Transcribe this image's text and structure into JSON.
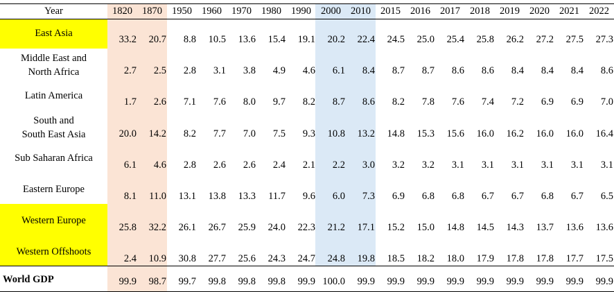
{
  "table": {
    "year_header": "Year",
    "years": [
      "1820",
      "1870",
      "1950",
      "1960",
      "1970",
      "1980",
      "1990",
      "2000",
      "2010",
      "2015",
      "2016",
      "2017",
      "2018",
      "2019",
      "2020",
      "2021",
      "2022"
    ],
    "rows": [
      {
        "region": [
          "East Asia"
        ],
        "highlight": true,
        "values": [
          "33.2",
          "20.7",
          "8.8",
          "10.5",
          "13.6",
          "15.4",
          "19.1",
          "20.2",
          "22.4",
          "24.5",
          "25.0",
          "25.4",
          "25.8",
          "26.2",
          "27.2",
          "27.5",
          "27.3"
        ]
      },
      {
        "region": [
          "Middle East and",
          "North Africa"
        ],
        "highlight": false,
        "values": [
          "2.7",
          "2.5",
          "2.8",
          "3.1",
          "3.8",
          "4.9",
          "4.6",
          "6.1",
          "8.4",
          "8.7",
          "8.7",
          "8.6",
          "8.6",
          "8.4",
          "8.4",
          "8.4",
          "8.6"
        ]
      },
      {
        "region": [
          "Latin America"
        ],
        "highlight": false,
        "values": [
          "1.7",
          "2.6",
          "7.1",
          "7.6",
          "8.0",
          "9.7",
          "8.2",
          "8.7",
          "8.6",
          "8.2",
          "7.8",
          "7.6",
          "7.4",
          "7.2",
          "6.9",
          "6.9",
          "7.0"
        ]
      },
      {
        "region": [
          "South and",
          "South East Asia"
        ],
        "highlight": false,
        "values": [
          "20.0",
          "14.2",
          "8.2",
          "7.7",
          "7.0",
          "7.5",
          "9.3",
          "10.8",
          "13.2",
          "14.8",
          "15.3",
          "15.6",
          "16.0",
          "16.2",
          "16.0",
          "16.0",
          "16.4"
        ]
      },
      {
        "region": [
          "Sub Saharan Africa"
        ],
        "highlight": false,
        "values": [
          "6.1",
          "4.6",
          "2.8",
          "2.6",
          "2.6",
          "2.4",
          "2.1",
          "2.2",
          "3.0",
          "3.2",
          "3.2",
          "3.1",
          "3.1",
          "3.1",
          "3.1",
          "3.1",
          "3.1"
        ]
      },
      {
        "region": [
          "Eastern Europe"
        ],
        "highlight": false,
        "values": [
          "8.1",
          "11.0",
          "13.1",
          "13.8",
          "13.3",
          "11.7",
          "9.6",
          "6.0",
          "7.3",
          "6.9",
          "6.8",
          "6.8",
          "6.7",
          "6.7",
          "6.8",
          "6.7",
          "6.5"
        ]
      },
      {
        "region": [
          "Western Europe"
        ],
        "highlight": true,
        "values": [
          "25.8",
          "32.2",
          "26.1",
          "26.7",
          "25.9",
          "24.0",
          "22.3",
          "21.2",
          "17.1",
          "15.2",
          "15.0",
          "14.8",
          "14.5",
          "14.3",
          "13.7",
          "13.6",
          "13.6"
        ]
      },
      {
        "region": [
          "Western Offshoots"
        ],
        "highlight": true,
        "values": [
          "2.4",
          "10.9",
          "30.8",
          "27.7",
          "25.6",
          "24.3",
          "24.7",
          "24.8",
          "19.8",
          "18.5",
          "18.2",
          "18.0",
          "17.9",
          "17.8",
          "17.8",
          "17.7",
          "17.5"
        ]
      }
    ],
    "world": {
      "label": "World GDP",
      "values": [
        "99.9",
        "98.7",
        "99.7",
        "99.8",
        "99.8",
        "99.8",
        "99.9",
        "100.0",
        "99.9",
        "99.9",
        "99.9",
        "99.9",
        "99.9",
        "99.9",
        "99.9",
        "99.9",
        "99.9"
      ]
    },
    "colors": {
      "highlight_yellow": "#ffff00",
      "early_columns": "#fbe4d5",
      "recent_columns": "#dbe9f6"
    }
  }
}
